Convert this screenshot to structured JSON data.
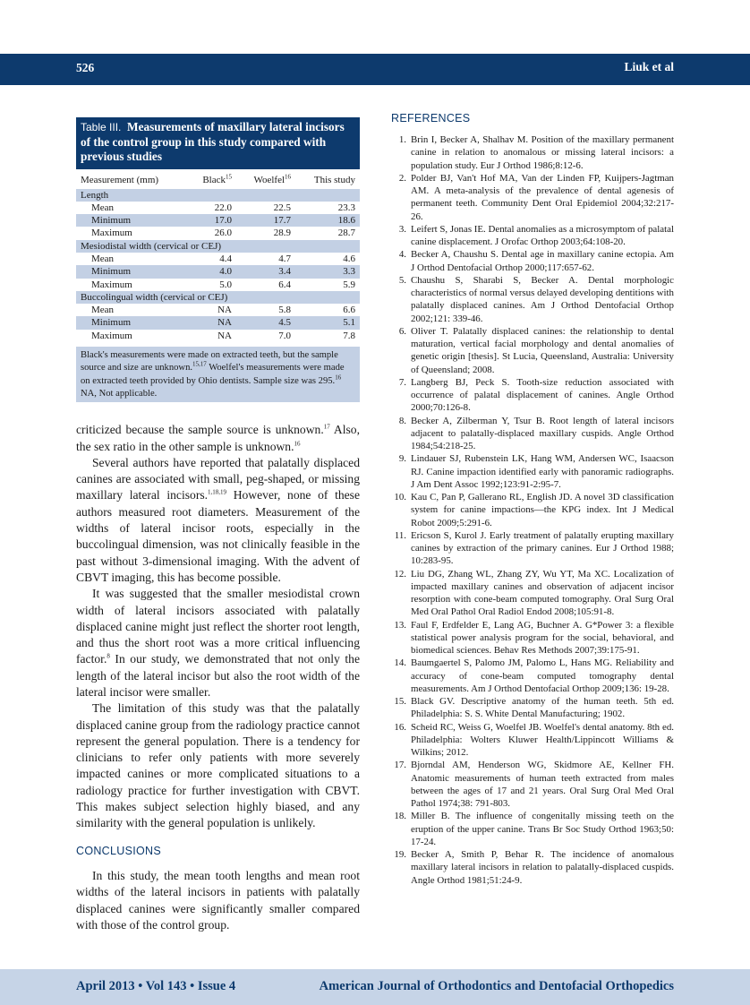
{
  "header": {
    "page_number": "526",
    "authors": "Liuk et al"
  },
  "footer": {
    "issue": "April 2013 • Vol 143 • Issue 4",
    "journal": "American Journal of Orthodontics and Dentofacial Orthopedics"
  },
  "table": {
    "label": "Table III.",
    "title": "Measurements of maxillary lateral incisors of the control group in this study compared with previous studies",
    "columns": [
      "Measurement (mm)",
      "Black",
      "Woelfel",
      "This study"
    ],
    "column_refs": [
      "",
      "15",
      "16",
      ""
    ],
    "groups": [
      {
        "name": "Length",
        "rows": [
          [
            "Mean",
            "22.0",
            "22.5",
            "23.3"
          ],
          [
            "Minimum",
            "17.0",
            "17.7",
            "18.6"
          ],
          [
            "Maximum",
            "26.0",
            "28.9",
            "28.7"
          ]
        ]
      },
      {
        "name": "Mesiodistal width (cervical or CEJ)",
        "rows": [
          [
            "Mean",
            "4.4",
            "4.7",
            "4.6"
          ],
          [
            "Minimum",
            "4.0",
            "3.4",
            "3.3"
          ],
          [
            "Maximum",
            "5.0",
            "6.4",
            "5.9"
          ]
        ]
      },
      {
        "name": "Buccolingual width (cervical or CEJ)",
        "rows": [
          [
            "Mean",
            "NA",
            "5.8",
            "6.6"
          ],
          [
            "Minimum",
            "NA",
            "4.5",
            "5.1"
          ],
          [
            "Maximum",
            "NA",
            "7.0",
            "7.8"
          ]
        ]
      }
    ],
    "note": {
      "a": "Black's measurements were made on extracted teeth, but the sample source and size are unknown.",
      "a_ref": "15,17",
      "b": " Woelfel's measurements were made on extracted teeth provided by Ohio dentists. Sample size was 295.",
      "b_ref": "16",
      "c": "NA, Not applicable."
    }
  },
  "body": {
    "p1": {
      "t1": "criticized because the sample source is unknown.",
      "r1": "17",
      "t2": " Also, the sex ratio in the other sample is unknown.",
      "r2": "16"
    },
    "p2": {
      "t1": "Several authors have reported that palatally displaced canines are associated with small, peg-shaped, or missing maxillary lateral incisors.",
      "r1": "1,18,19",
      "t2": " However, none of these authors measured root diameters. Measurement of the widths of lateral incisor roots, especially in the buccolingual dimension, was not clinically feasible in the past without 3-dimensional imaging. With the advent of CBVT imaging, this has become possible."
    },
    "p3": {
      "t1": "It was suggested that the smaller mesiodistal crown width of lateral incisors associated with palatally displaced canine might just reflect the shorter root length, and thus the short root was a more critical influencing factor.",
      "r1": "8",
      "t2": " In our study, we demonstrated that not only the length of the lateral incisor but also the root width of the lateral incisor were smaller."
    },
    "p4": "The limitation of this study was that the palatally displaced canine group from the radiology practice cannot represent the general population. There is a tendency for clinicians to refer only patients with more severely impacted canines or more complicated situations to a radiology practice for further investigation with CBVT. This makes subject selection highly biased, and any similarity with the general population is unlikely.",
    "conclusions_heading": "CONCLUSIONS",
    "p5": "In this study, the mean tooth lengths and mean root widths of the lateral incisors in patients with palatally displaced canines were significantly smaller compared with those of the control group."
  },
  "references": {
    "heading": "REFERENCES",
    "items": [
      "Brin I, Becker A, Shalhav M. Position of the maxillary permanent canine in relation to anomalous or missing lateral incisors: a population study. Eur J Orthod 1986;8:12-6.",
      "Polder BJ, Van't Hof MA, Van der Linden FP, Kuijpers-Jagtman AM. A meta-analysis of the prevalence of dental agenesis of permanent teeth. Community Dent Oral Epidemiol 2004;32:217-26.",
      "Leifert S, Jonas IE. Dental anomalies as a microsymptom of palatal canine displacement. J Orofac Orthop 2003;64:108-20.",
      "Becker A, Chaushu S. Dental age in maxillary canine ectopia. Am J Orthod Dentofacial Orthop 2000;117:657-62.",
      "Chaushu S, Sharabi S, Becker A. Dental morphologic characteristics of normal versus delayed developing dentitions with palatally displaced canines. Am J Orthod Dentofacial Orthop 2002;121: 339-46.",
      "Oliver T. Palatally displaced canines: the relationship to dental maturation, vertical facial morphology and dental anomalies of genetic origin [thesis]. St Lucia, Queensland, Australia: University of Queensland; 2008.",
      "Langberg BJ, Peck S. Tooth-size reduction associated with occurrence of palatal displacement of canines. Angle Orthod 2000;70:126-8.",
      "Becker A, Zilberman Y, Tsur B. Root length of lateral incisors adjacent to palatally-displaced maxillary cuspids. Angle Orthod 1984;54:218-25.",
      "Lindauer SJ, Rubenstein LK, Hang WM, Andersen WC, Isaacson RJ. Canine impaction identified early with panoramic radiographs. J Am Dent Assoc 1992;123:91-2:95-7.",
      "Kau C, Pan P, Gallerano RL, English JD. A novel 3D classification system for canine impactions—the KPG index. Int J Medical Robot 2009;5:291-6.",
      "Ericson S, Kurol J. Early treatment of palatally erupting maxillary canines by extraction of the primary canines. Eur J Orthod 1988; 10:283-95.",
      "Liu DG, Zhang WL, Zhang ZY, Wu YT, Ma XC. Localization of impacted maxillary canines and observation of adjacent incisor resorption with cone-beam computed tomography. Oral Surg Oral Med Oral Pathol Oral Radiol Endod 2008;105:91-8.",
      "Faul F, Erdfelder E, Lang AG, Buchner A. G*Power 3: a flexible statistical power analysis program for the social, behavioral, and biomedical sciences. Behav Res Methods 2007;39:175-91.",
      "Baumgaertel S, Palomo JM, Palomo L, Hans MG. Reliability and accuracy of cone-beam computed tomography dental measurements. Am J Orthod Dentofacial Orthop 2009;136: 19-28.",
      "Black GV. Descriptive anatomy of the human teeth. 5th ed. Philadelphia: S. S. White Dental Manufacturing; 1902.",
      "Scheid RC, Weiss G, Woelfel JB. Woelfel's dental anatomy. 8th ed. Philadelphia: Wolters Kluwer Health/Lippincott Williams & Wilkins; 2012.",
      "Bjorndal AM, Henderson WG, Skidmore AE, Kellner FH. Anatomic measurements of human teeth extracted from males between the ages of 17 and 21 years. Oral Surg Oral Med Oral Pathol 1974;38: 791-803.",
      "Miller B. The influence of congenitally missing teeth on the eruption of the upper canine. Trans Br Soc Study Orthod 1963;50: 17-24.",
      "Becker A, Smith P, Behar R. The incidence of anomalous maxillary lateral incisors in relation to palatally-displaced cuspids. Angle Orthod 1981;51:24-9."
    ]
  },
  "colors": {
    "brand_navy": "#0d3a6d",
    "table_shade": "#c3d0e4",
    "footer_band": "#c6d4e7"
  }
}
